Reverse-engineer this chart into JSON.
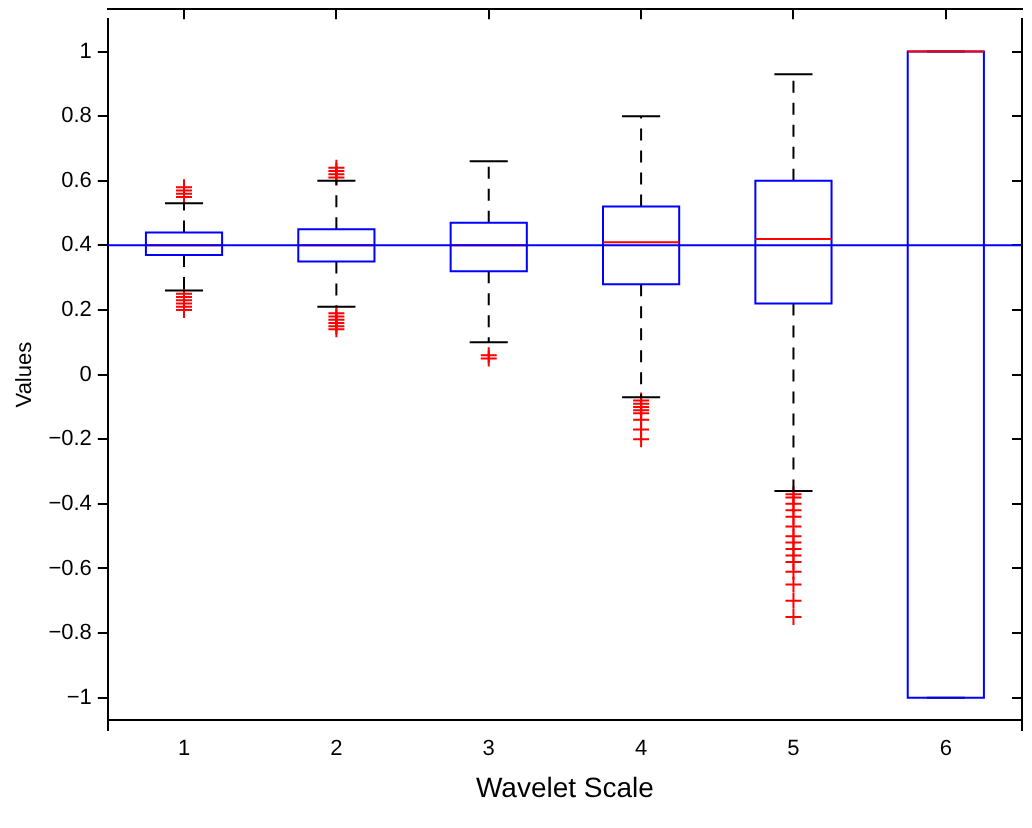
{
  "chart_data": {
    "type": "box",
    "xlabel": "Wavelet Scale",
    "ylabel": "Values",
    "categories": [
      "1",
      "2",
      "3",
      "4",
      "5",
      "6"
    ],
    "color": "#0000ff",
    "boxes": [
      {
        "low": 0.26,
        "q1": 0.37,
        "median": 0.4,
        "q3": 0.44,
        "high": 0.53,
        "outliers": [
          0.55,
          0.56,
          0.57,
          0.58,
          0.25,
          0.24,
          0.23,
          0.22,
          0.21,
          0.2
        ]
      },
      {
        "low": 0.21,
        "q1": 0.35,
        "median": 0.4,
        "q3": 0.45,
        "high": 0.6,
        "outliers": [
          0.61,
          0.62,
          0.63,
          0.64,
          0.19,
          0.18,
          0.17,
          0.16,
          0.15,
          0.14
        ]
      },
      {
        "low": 0.1,
        "q1": 0.32,
        "median": 0.4,
        "q3": 0.47,
        "high": 0.66,
        "outliers": [
          0.06,
          0.05
        ]
      },
      {
        "low": -0.07,
        "q1": 0.28,
        "median": 0.41,
        "q3": 0.52,
        "high": 0.8,
        "outliers": [
          -0.08,
          -0.09,
          -0.1,
          -0.11,
          -0.12,
          -0.14,
          -0.17,
          -0.2
        ]
      },
      {
        "low": -0.36,
        "q1": 0.22,
        "median": 0.42,
        "q3": 0.6,
        "high": 0.93,
        "outliers": [
          -0.37,
          -0.38,
          -0.4,
          -0.42,
          -0.44,
          -0.47,
          -0.5,
          -0.52,
          -0.54,
          -0.56,
          -0.58,
          -0.61,
          -0.65,
          -0.7,
          -0.75
        ]
      },
      {
        "low": -1,
        "q1": -1,
        "median": 1,
        "q3": 1,
        "high": 1
      }
    ],
    "ylim": [
      -1.1,
      1.1
    ],
    "yticks": [
      {
        "value": -1,
        "label": "−1"
      },
      {
        "value": -0.8,
        "label": "−0.8"
      },
      {
        "value": -0.6,
        "label": "−0.6"
      },
      {
        "value": -0.4,
        "label": "−0.4"
      },
      {
        "value": -0.2,
        "label": "−0.2"
      },
      0,
      0.2,
      0.4,
      0.6,
      0.8,
      1
    ],
    "ref_lines": [
      {
        "axis": "y",
        "value": 0.4,
        "color": "#0000ff"
      }
    ],
    "grid": false,
    "legend": false
  }
}
